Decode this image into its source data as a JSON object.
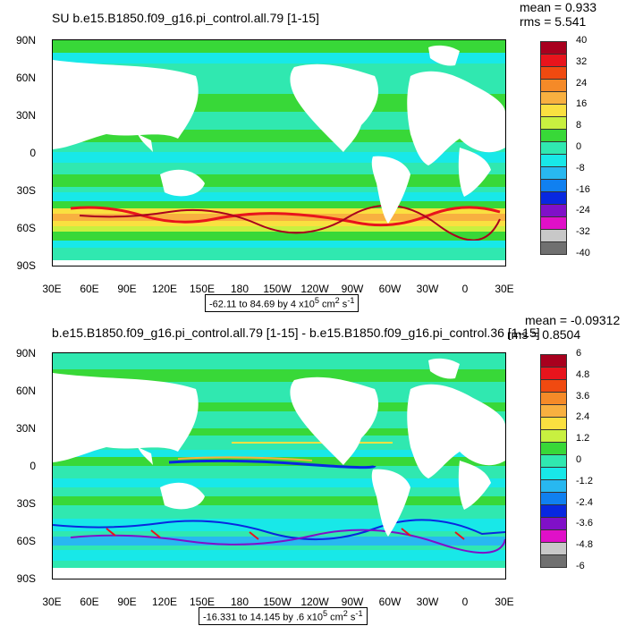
{
  "panels": [
    {
      "title": "SU b.e15.B1850.f09_g16.pi_control.all.79 [1-15]",
      "mean_text": "mean = 0.933",
      "rms_text": "rms = 5.541",
      "range_text": "-62.11 to 84.69 by 4 x10",
      "range_exp": "5",
      "range_units": " cm",
      "range_units_exp": "2",
      "range_units_tail": " s",
      "range_units_tail_exp": "-1",
      "colorbar_labels": [
        "40",
        "32",
        "24",
        "16",
        "8",
        "0",
        "-8",
        "-16",
        "-24",
        "-32",
        "-40"
      ],
      "colorbar_colors": [
        "#a8001e",
        "#e8141c",
        "#f04a10",
        "#f58a28",
        "#f8b040",
        "#fae040",
        "#c8f040",
        "#38d838",
        "#30e8b0",
        "#18e8e8",
        "#28b8f0",
        "#1080f0",
        "#0828e0",
        "#8010c8",
        "#e010c8",
        "#c8c8c8",
        "#707070"
      ]
    },
    {
      "title": "b.e15.B1850.f09_g16.pi_control.all.79 [1-15] - b.e15.B1850.f09_g16.pi_control.36 [1-15]",
      "mean_text": "mean = -0.09312",
      "rms_text": "rms = 0.8504",
      "range_text": "-16.331 to 14.145 by .6 x10",
      "range_exp": "5",
      "range_units": " cm",
      "range_units_exp": "2",
      "range_units_tail": " s",
      "range_units_tail_exp": "-1",
      "colorbar_labels": [
        "6",
        "4.8",
        "3.6",
        "2.4",
        "1.2",
        "0",
        "-1.2",
        "-2.4",
        "-3.6",
        "-4.8",
        "-6"
      ],
      "colorbar_colors": [
        "#a8001e",
        "#e8141c",
        "#f04a10",
        "#f58a28",
        "#f8b040",
        "#fae040",
        "#c8f040",
        "#38d838",
        "#30e8b0",
        "#18e8e8",
        "#28b8f0",
        "#1080f0",
        "#0828e0",
        "#8010c8",
        "#e010c8",
        "#c8c8c8",
        "#707070"
      ]
    }
  ],
  "lat_labels": [
    "90N",
    "60N",
    "30N",
    "0",
    "30S",
    "60S",
    "90S"
  ],
  "lon_labels": [
    "30E",
    "60E",
    "90E",
    "120E",
    "150E",
    "180",
    "150W",
    "120W",
    "90W",
    "60W",
    "30W",
    "0",
    "30E"
  ],
  "colors": {
    "ocean_base": "#30e8b0",
    "ocean_light": "#18e8e8",
    "green": "#38d838",
    "land": "#ffffff"
  }
}
